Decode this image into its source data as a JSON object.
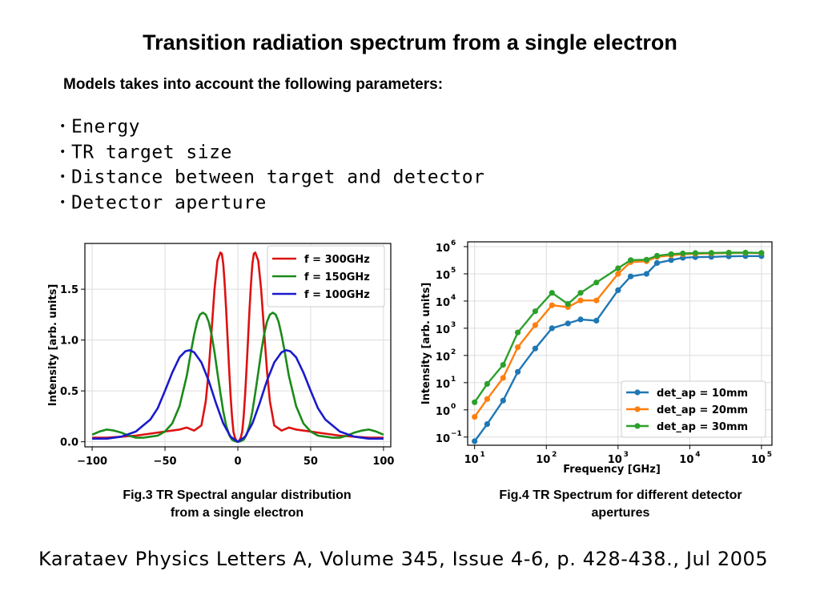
{
  "title": "Transition radiation spectrum from a single electron",
  "subtitle": "Models takes into account the following parameters:",
  "bullets": [
    "Energy",
    "TR target size",
    "Distance between target and detector",
    "Detector aperture"
  ],
  "bullet_glyph": "•",
  "captions": {
    "fig3": [
      "Fig.3 TR Spectral angular distribution",
      "from a single electron"
    ],
    "fig4": [
      "Fig.4 TR Spectrum for different detector",
      "apertures"
    ]
  },
  "citation": "Karataev Physics Letters A, Volume 345, Issue 4-6, p. 428-438., Jul 2005",
  "chart_data": [
    {
      "type": "line",
      "title": "",
      "xlabel": "",
      "ylabel": "Intensity [arb. units]",
      "xlim": [
        -105,
        105
      ],
      "ylim": [
        -0.05,
        1.95
      ],
      "xticks": [
        -100,
        -50,
        0,
        50,
        100
      ],
      "xtick_labels": [
        "−100",
        "−50",
        "0",
        "50",
        "100"
      ],
      "yticks": [
        0,
        0.5,
        1.0,
        1.5
      ],
      "ytick_labels": [
        "0.0",
        "0.5",
        "1.0",
        "1.5"
      ],
      "grid": true,
      "legend_position": "top-right",
      "series": [
        {
          "name": "f = 300GHz",
          "color": "#dd1111",
          "x": [
            -100,
            -90,
            -80,
            -70,
            -60,
            -50,
            -40,
            -35,
            -30,
            -25,
            -22,
            -20,
            -18,
            -16,
            -14,
            -12,
            -11,
            -10,
            -9,
            -8,
            -7,
            -6,
            -5,
            -4,
            -3,
            -2,
            -1,
            0,
            1,
            2,
            3,
            4,
            5,
            6,
            7,
            8,
            9,
            10,
            11,
            12,
            14,
            16,
            18,
            20,
            22,
            25,
            30,
            35,
            40,
            50,
            60,
            70,
            80,
            90,
            100
          ],
          "y": [
            0.04,
            0.04,
            0.05,
            0.06,
            0.08,
            0.1,
            0.12,
            0.14,
            0.11,
            0.16,
            0.4,
            0.7,
            1.1,
            1.5,
            1.78,
            1.86,
            1.85,
            1.75,
            1.55,
            1.3,
            1.0,
            0.72,
            0.46,
            0.25,
            0.1,
            0.04,
            0.01,
            0.0,
            0.01,
            0.04,
            0.1,
            0.25,
            0.46,
            0.72,
            1.0,
            1.3,
            1.55,
            1.75,
            1.85,
            1.86,
            1.78,
            1.5,
            1.1,
            0.7,
            0.4,
            0.16,
            0.11,
            0.14,
            0.12,
            0.1,
            0.08,
            0.06,
            0.05,
            0.04,
            0.04
          ]
        },
        {
          "name": "f = 150GHz",
          "color": "#1a8a1a",
          "x": [
            -100,
            -95,
            -90,
            -85,
            -80,
            -75,
            -70,
            -65,
            -60,
            -55,
            -50,
            -45,
            -40,
            -35,
            -32,
            -30,
            -28,
            -26,
            -24,
            -22,
            -20,
            -18,
            -16,
            -14,
            -12,
            -10,
            -8,
            -6,
            -4,
            -2,
            0,
            2,
            4,
            6,
            8,
            10,
            12,
            14,
            16,
            18,
            20,
            22,
            24,
            26,
            28,
            30,
            32,
            35,
            40,
            45,
            50,
            55,
            60,
            65,
            70,
            75,
            80,
            85,
            90,
            95,
            100
          ],
          "y": [
            0.07,
            0.1,
            0.12,
            0.11,
            0.09,
            0.06,
            0.04,
            0.04,
            0.05,
            0.06,
            0.1,
            0.18,
            0.35,
            0.65,
            0.9,
            1.05,
            1.18,
            1.25,
            1.27,
            1.25,
            1.18,
            1.05,
            0.88,
            0.68,
            0.48,
            0.3,
            0.16,
            0.07,
            0.02,
            0.005,
            0.0,
            0.005,
            0.02,
            0.07,
            0.16,
            0.3,
            0.48,
            0.68,
            0.88,
            1.05,
            1.18,
            1.25,
            1.27,
            1.25,
            1.18,
            1.05,
            0.9,
            0.65,
            0.35,
            0.18,
            0.1,
            0.06,
            0.05,
            0.04,
            0.04,
            0.06,
            0.09,
            0.11,
            0.12,
            0.1,
            0.07
          ]
        },
        {
          "name": "f = 100GHz",
          "color": "#1a1acc",
          "x": [
            -100,
            -90,
            -80,
            -70,
            -60,
            -55,
            -50,
            -45,
            -40,
            -36,
            -33,
            -30,
            -25,
            -20,
            -15,
            -10,
            -5,
            0,
            5,
            10,
            15,
            20,
            25,
            30,
            33,
            36,
            40,
            45,
            50,
            55,
            60,
            70,
            80,
            90,
            100
          ],
          "y": [
            0.03,
            0.03,
            0.05,
            0.1,
            0.22,
            0.33,
            0.5,
            0.68,
            0.83,
            0.89,
            0.9,
            0.88,
            0.78,
            0.6,
            0.38,
            0.18,
            0.05,
            0.0,
            0.05,
            0.18,
            0.38,
            0.6,
            0.78,
            0.88,
            0.9,
            0.89,
            0.83,
            0.68,
            0.5,
            0.33,
            0.22,
            0.1,
            0.05,
            0.03,
            0.03
          ]
        }
      ]
    },
    {
      "type": "line",
      "title": "",
      "xlabel": "Frequency [GHz]",
      "ylabel": "Intensity [arb. units]",
      "xscale": "log",
      "yscale": "log",
      "xlim": [
        8,
        140000
      ],
      "ylim": [
        0.05,
        1500000
      ],
      "xtick_exponents": [
        1,
        2,
        3,
        4,
        5
      ],
      "ytick_exponents": [
        -1,
        0,
        1,
        2,
        3,
        4,
        5,
        6
      ],
      "tick_base": "10",
      "grid": true,
      "legend_position": "bottom-right",
      "series": [
        {
          "name": "det_ap = 10mm",
          "color": "#1f77b4",
          "x": [
            10,
            15,
            25,
            40,
            70,
            120,
            200,
            300,
            500,
            1000,
            1500,
            2500,
            3500,
            5500,
            8000,
            12000,
            20000,
            35000,
            60000,
            100000
          ],
          "y": [
            0.07,
            0.3,
            2.2,
            25,
            180,
            1000,
            1500,
            2100,
            1900,
            25000,
            80000,
            100000,
            250000,
            320000,
            390000,
            410000,
            420000,
            440000,
            450000,
            450000
          ]
        },
        {
          "name": "det_ap = 20mm",
          "color": "#ff7f0e",
          "x": [
            10,
            15,
            25,
            40,
            70,
            120,
            200,
            300,
            500,
            1000,
            1500,
            2500,
            3500,
            5500,
            8000,
            12000,
            20000,
            35000,
            60000,
            100000
          ],
          "y": [
            0.55,
            2.5,
            15,
            200,
            1300,
            7000,
            6000,
            10500,
            10500,
            100000,
            270000,
            290000,
            420000,
            480000,
            520000,
            550000,
            560000,
            580000,
            590000,
            580000
          ]
        },
        {
          "name": "det_ap = 30mm",
          "color": "#2ca02c",
          "x": [
            10,
            15,
            25,
            40,
            70,
            120,
            200,
            300,
            500,
            1000,
            1500,
            2500,
            3500,
            5500,
            8000,
            12000,
            20000,
            35000,
            60000,
            100000
          ],
          "y": [
            1.9,
            9,
            45,
            700,
            4200,
            20000,
            7800,
            20000,
            48000,
            160000,
            320000,
            330000,
            460000,
            530000,
            560000,
            580000,
            590000,
            600000,
            600000,
            590000
          ]
        }
      ]
    }
  ]
}
